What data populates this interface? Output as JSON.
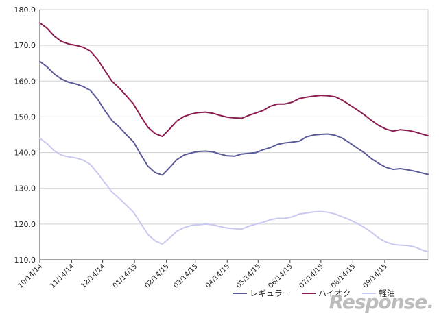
{
  "colors": {
    "regular": "#5a5a99",
    "high_octane": "#8b1a4f",
    "diesel": "#c8c8f0",
    "grid": "#cfcfcf",
    "axis": "#444444",
    "text": "#222222"
  },
  "watermark": "Response.",
  "chart_data": {
    "type": "line",
    "title": "",
    "xlabel": "",
    "ylabel": "",
    "ylim": [
      110,
      180
    ],
    "yticks": [
      "110.0",
      "120.0",
      "130.0",
      "140.0",
      "150.0",
      "160.0",
      "170.0",
      "180.0"
    ],
    "grid": true,
    "legend_position": "bottom-right",
    "x_tick_labels": [
      "10/14/14",
      "11/14/14",
      "12/14/14",
      "01/14/15",
      "02/14/15",
      "03/14/15",
      "04/14/15",
      "05/14/15",
      "06/14/15",
      "07/14/15",
      "08/14/15",
      "09/14/15"
    ],
    "x_start": "2014-10-14",
    "x_end": "2015-10-26",
    "series": [
      {
        "name": "レギュラー",
        "color": "#5a5a99",
        "points": [
          [
            "2014-10-14",
            165.5
          ],
          [
            "2014-10-21",
            164.0
          ],
          [
            "2014-10-28",
            162.0
          ],
          [
            "2014-11-04",
            160.6
          ],
          [
            "2014-11-11",
            159.7
          ],
          [
            "2014-11-18",
            159.2
          ],
          [
            "2014-11-25",
            158.5
          ],
          [
            "2014-12-02",
            157.4
          ],
          [
            "2014-12-09",
            155.0
          ],
          [
            "2014-12-16",
            151.8
          ],
          [
            "2014-12-23",
            149.0
          ],
          [
            "2014-12-30",
            147.2
          ],
          [
            "2015-01-06",
            145.0
          ],
          [
            "2015-01-13",
            143.0
          ],
          [
            "2015-01-20",
            139.5
          ],
          [
            "2015-01-27",
            136.2
          ],
          [
            "2015-02-03",
            134.4
          ],
          [
            "2015-02-10",
            133.7
          ],
          [
            "2015-02-17",
            135.8
          ],
          [
            "2015-02-24",
            138.0
          ],
          [
            "2015-03-03",
            139.3
          ],
          [
            "2015-03-10",
            139.9
          ],
          [
            "2015-03-17",
            140.3
          ],
          [
            "2015-03-24",
            140.4
          ],
          [
            "2015-03-31",
            140.2
          ],
          [
            "2015-04-07",
            139.6
          ],
          [
            "2015-04-14",
            139.1
          ],
          [
            "2015-04-21",
            139.0
          ],
          [
            "2015-04-28",
            139.6
          ],
          [
            "2015-05-05",
            139.8
          ],
          [
            "2015-05-12",
            140.0
          ],
          [
            "2015-05-19",
            140.8
          ],
          [
            "2015-05-26",
            141.4
          ],
          [
            "2015-06-02",
            142.3
          ],
          [
            "2015-06-09",
            142.7
          ],
          [
            "2015-06-16",
            142.9
          ],
          [
            "2015-06-23",
            143.2
          ],
          [
            "2015-06-30",
            144.4
          ],
          [
            "2015-07-07",
            144.9
          ],
          [
            "2015-07-14",
            145.1
          ],
          [
            "2015-07-21",
            145.2
          ],
          [
            "2015-07-28",
            144.8
          ],
          [
            "2015-08-04",
            144.0
          ],
          [
            "2015-08-11",
            142.7
          ],
          [
            "2015-08-18",
            141.3
          ],
          [
            "2015-08-25",
            140.0
          ],
          [
            "2015-09-01",
            138.3
          ],
          [
            "2015-09-08",
            137.0
          ],
          [
            "2015-09-15",
            135.9
          ],
          [
            "2015-09-22",
            135.3
          ],
          [
            "2015-09-29",
            135.5
          ],
          [
            "2015-10-06",
            135.2
          ],
          [
            "2015-10-13",
            134.8
          ],
          [
            "2015-10-20",
            134.3
          ],
          [
            "2015-10-26",
            133.9
          ]
        ]
      },
      {
        "name": "ハイオク",
        "color": "#8b1a4f",
        "points": [
          [
            "2014-10-14",
            176.3
          ],
          [
            "2014-10-21",
            174.8
          ],
          [
            "2014-10-28",
            172.6
          ],
          [
            "2014-11-04",
            171.1
          ],
          [
            "2014-11-11",
            170.4
          ],
          [
            "2014-11-18",
            170.0
          ],
          [
            "2014-11-25",
            169.5
          ],
          [
            "2014-12-02",
            168.4
          ],
          [
            "2014-12-09",
            166.1
          ],
          [
            "2014-12-16",
            163.0
          ],
          [
            "2014-12-23",
            160.0
          ],
          [
            "2014-12-30",
            158.1
          ],
          [
            "2015-01-06",
            155.9
          ],
          [
            "2015-01-13",
            153.6
          ],
          [
            "2015-01-20",
            150.2
          ],
          [
            "2015-01-27",
            147.1
          ],
          [
            "2015-02-03",
            145.3
          ],
          [
            "2015-02-10",
            144.5
          ],
          [
            "2015-02-17",
            146.6
          ],
          [
            "2015-02-24",
            148.8
          ],
          [
            "2015-03-03",
            150.1
          ],
          [
            "2015-03-10",
            150.8
          ],
          [
            "2015-03-17",
            151.2
          ],
          [
            "2015-03-24",
            151.3
          ],
          [
            "2015-03-31",
            151.0
          ],
          [
            "2015-04-07",
            150.4
          ],
          [
            "2015-04-14",
            149.9
          ],
          [
            "2015-04-21",
            149.7
          ],
          [
            "2015-04-28",
            149.6
          ],
          [
            "2015-05-05",
            150.4
          ],
          [
            "2015-05-12",
            151.1
          ],
          [
            "2015-05-19",
            151.8
          ],
          [
            "2015-05-26",
            153.0
          ],
          [
            "2015-06-02",
            153.6
          ],
          [
            "2015-06-09",
            153.6
          ],
          [
            "2015-06-16",
            154.1
          ],
          [
            "2015-06-23",
            155.1
          ],
          [
            "2015-06-30",
            155.5
          ],
          [
            "2015-07-07",
            155.8
          ],
          [
            "2015-07-14",
            156.0
          ],
          [
            "2015-07-21",
            155.9
          ],
          [
            "2015-07-28",
            155.6
          ],
          [
            "2015-08-04",
            154.6
          ],
          [
            "2015-08-11",
            153.3
          ],
          [
            "2015-08-18",
            152.0
          ],
          [
            "2015-08-25",
            150.6
          ],
          [
            "2015-09-01",
            149.0
          ],
          [
            "2015-09-08",
            147.6
          ],
          [
            "2015-09-15",
            146.6
          ],
          [
            "2015-09-22",
            146.0
          ],
          [
            "2015-09-29",
            146.4
          ],
          [
            "2015-10-06",
            146.2
          ],
          [
            "2015-10-13",
            145.8
          ],
          [
            "2015-10-20",
            145.2
          ],
          [
            "2015-10-26",
            144.7
          ]
        ]
      },
      {
        "name": "軽油",
        "color": "#c8c8f0",
        "points": [
          [
            "2014-10-14",
            144.0
          ],
          [
            "2014-10-21",
            142.5
          ],
          [
            "2014-10-28",
            140.5
          ],
          [
            "2014-11-04",
            139.3
          ],
          [
            "2014-11-11",
            138.8
          ],
          [
            "2014-11-18",
            138.5
          ],
          [
            "2014-11-25",
            137.9
          ],
          [
            "2014-12-02",
            136.7
          ],
          [
            "2014-12-09",
            134.3
          ],
          [
            "2014-12-16",
            131.6
          ],
          [
            "2014-12-23",
            129.0
          ],
          [
            "2014-12-30",
            127.2
          ],
          [
            "2015-01-06",
            125.3
          ],
          [
            "2015-01-13",
            123.3
          ],
          [
            "2015-01-20",
            120.2
          ],
          [
            "2015-01-27",
            117.1
          ],
          [
            "2015-02-03",
            115.3
          ],
          [
            "2015-02-10",
            114.4
          ],
          [
            "2015-02-17",
            116.1
          ],
          [
            "2015-02-24",
            118.0
          ],
          [
            "2015-03-03",
            119.0
          ],
          [
            "2015-03-10",
            119.6
          ],
          [
            "2015-03-17",
            119.8
          ],
          [
            "2015-03-24",
            120.0
          ],
          [
            "2015-03-31",
            119.8
          ],
          [
            "2015-04-07",
            119.3
          ],
          [
            "2015-04-14",
            118.9
          ],
          [
            "2015-04-21",
            118.7
          ],
          [
            "2015-04-28",
            118.6
          ],
          [
            "2015-05-05",
            119.4
          ],
          [
            "2015-05-12",
            120.0
          ],
          [
            "2015-05-19",
            120.5
          ],
          [
            "2015-05-26",
            121.2
          ],
          [
            "2015-06-02",
            121.6
          ],
          [
            "2015-06-09",
            121.6
          ],
          [
            "2015-06-16",
            122.0
          ],
          [
            "2015-06-23",
            122.8
          ],
          [
            "2015-06-30",
            123.1
          ],
          [
            "2015-07-07",
            123.4
          ],
          [
            "2015-07-14",
            123.5
          ],
          [
            "2015-07-21",
            123.3
          ],
          [
            "2015-07-28",
            122.8
          ],
          [
            "2015-08-04",
            122.0
          ],
          [
            "2015-08-11",
            121.2
          ],
          [
            "2015-08-18",
            120.2
          ],
          [
            "2015-08-25",
            119.1
          ],
          [
            "2015-09-01",
            117.7
          ],
          [
            "2015-09-08",
            116.1
          ],
          [
            "2015-09-15",
            115.0
          ],
          [
            "2015-09-22",
            114.3
          ],
          [
            "2015-09-29",
            114.1
          ],
          [
            "2015-10-06",
            114.0
          ],
          [
            "2015-10-13",
            113.6
          ],
          [
            "2015-10-20",
            112.8
          ],
          [
            "2015-10-26",
            112.2
          ]
        ]
      }
    ]
  }
}
